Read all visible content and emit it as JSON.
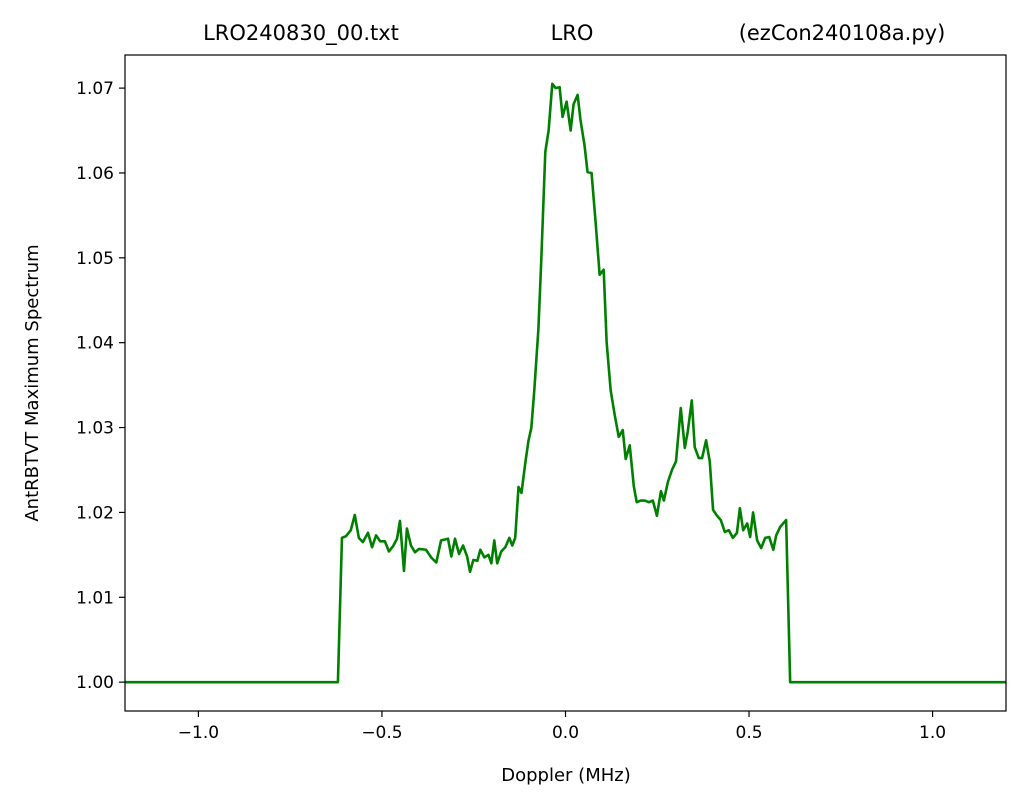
{
  "chart_data": {
    "type": "line",
    "title": [
      "LRO240830_00.txt",
      "LRO",
      "(ezCon240108a.py)"
    ],
    "x_label": "Doppler (MHz)",
    "y_label": "AntRBTVT Maximum Spectrum",
    "color": "#008000",
    "xlim": [
      -1.2,
      1.2
    ],
    "ylim": [
      0.9966,
      1.0739
    ],
    "xticks": [
      {
        "value": -1.0,
        "label": "−1.0"
      },
      {
        "value": -0.5,
        "label": "−0.5"
      },
      {
        "value": 0.0,
        "label": "0.0"
      },
      {
        "value": 0.5,
        "label": "0.5"
      },
      {
        "value": 1.0,
        "label": "1.0"
      }
    ],
    "yticks": [
      {
        "value": 1.0,
        "label": "1.00"
      },
      {
        "value": 1.01,
        "label": "1.01"
      },
      {
        "value": 1.02,
        "label": "1.02"
      },
      {
        "value": 1.03,
        "label": "1.03"
      },
      {
        "value": 1.04,
        "label": "1.04"
      },
      {
        "value": 1.05,
        "label": "1.05"
      },
      {
        "value": 1.06,
        "label": "1.06"
      },
      {
        "value": 1.07,
        "label": "1.07"
      }
    ],
    "x": [
      -1.2,
      -0.62,
      -0.609,
      -0.598,
      -0.585,
      -0.574,
      -0.563,
      -0.552,
      -0.538,
      -0.527,
      -0.516,
      -0.505,
      -0.492,
      -0.481,
      -0.47,
      -0.459,
      -0.451,
      -0.44,
      -0.432,
      -0.421,
      -0.41,
      -0.399,
      -0.38,
      -0.366,
      -0.352,
      -0.339,
      -0.32,
      -0.311,
      -0.301,
      -0.29,
      -0.279,
      -0.268,
      -0.26,
      -0.251,
      -0.24,
      -0.232,
      -0.221,
      -0.21,
      -0.202,
      -0.194,
      -0.186,
      -0.175,
      -0.164,
      -0.153,
      -0.145,
      -0.137,
      -0.128,
      -0.12,
      -0.109,
      -0.101,
      -0.093,
      -0.085,
      -0.074,
      -0.066,
      -0.055,
      -0.046,
      -0.036,
      -0.027,
      -0.016,
      -0.008,
      0.003,
      0.014,
      0.022,
      0.033,
      0.041,
      0.052,
      0.06,
      0.071,
      0.082,
      0.093,
      0.104,
      0.112,
      0.123,
      0.134,
      0.145,
      0.156,
      0.164,
      0.175,
      0.186,
      0.194,
      0.205,
      0.216,
      0.227,
      0.238,
      0.249,
      0.26,
      0.268,
      0.279,
      0.29,
      0.301,
      0.314,
      0.325,
      0.333,
      0.344,
      0.352,
      0.363,
      0.372,
      0.383,
      0.393,
      0.402,
      0.413,
      0.423,
      0.434,
      0.445,
      0.456,
      0.467,
      0.475,
      0.484,
      0.495,
      0.503,
      0.511,
      0.522,
      0.533,
      0.544,
      0.555,
      0.566,
      0.574,
      0.585,
      0.601,
      0.612,
      1.2
    ],
    "values": [
      1.0,
      1.0,
      1.017,
      1.0172,
      1.0179,
      1.0197,
      1.017,
      1.0165,
      1.0176,
      1.0159,
      1.0173,
      1.0166,
      1.0166,
      1.0154,
      1.016,
      1.0169,
      1.019,
      1.0131,
      1.0181,
      1.0161,
      1.0153,
      1.0157,
      1.0156,
      1.0147,
      1.0141,
      1.0167,
      1.0169,
      1.0148,
      1.0169,
      1.0151,
      1.0161,
      1.0148,
      1.013,
      1.0144,
      1.0143,
      1.0156,
      1.0147,
      1.015,
      1.014,
      1.0167,
      1.014,
      1.0154,
      1.0159,
      1.017,
      1.0161,
      1.017,
      1.023,
      1.0223,
      1.026,
      1.0284,
      1.03,
      1.0344,
      1.0415,
      1.0497,
      1.0625,
      1.065,
      1.0705,
      1.07,
      1.0701,
      1.0666,
      1.0684,
      1.065,
      1.0681,
      1.0692,
      1.0662,
      1.0632,
      1.0601,
      1.06,
      1.0542,
      1.048,
      1.0486,
      1.0401,
      1.0344,
      1.0315,
      1.0289,
      1.0297,
      1.0263,
      1.0279,
      1.0231,
      1.0212,
      1.0214,
      1.0214,
      1.0212,
      1.0214,
      1.0196,
      1.0225,
      1.0214,
      1.0236,
      1.025,
      1.026,
      1.0323,
      1.0276,
      1.0295,
      1.0332,
      1.0277,
      1.0264,
      1.0264,
      1.0285,
      1.026,
      1.0203,
      1.0196,
      1.0191,
      1.0177,
      1.0179,
      1.017,
      1.0176,
      1.0205,
      1.0179,
      1.0187,
      1.0171,
      1.02,
      1.0167,
      1.0158,
      1.017,
      1.0171,
      1.0156,
      1.0173,
      1.0183,
      1.0191,
      1.0,
      1.0
    ]
  }
}
